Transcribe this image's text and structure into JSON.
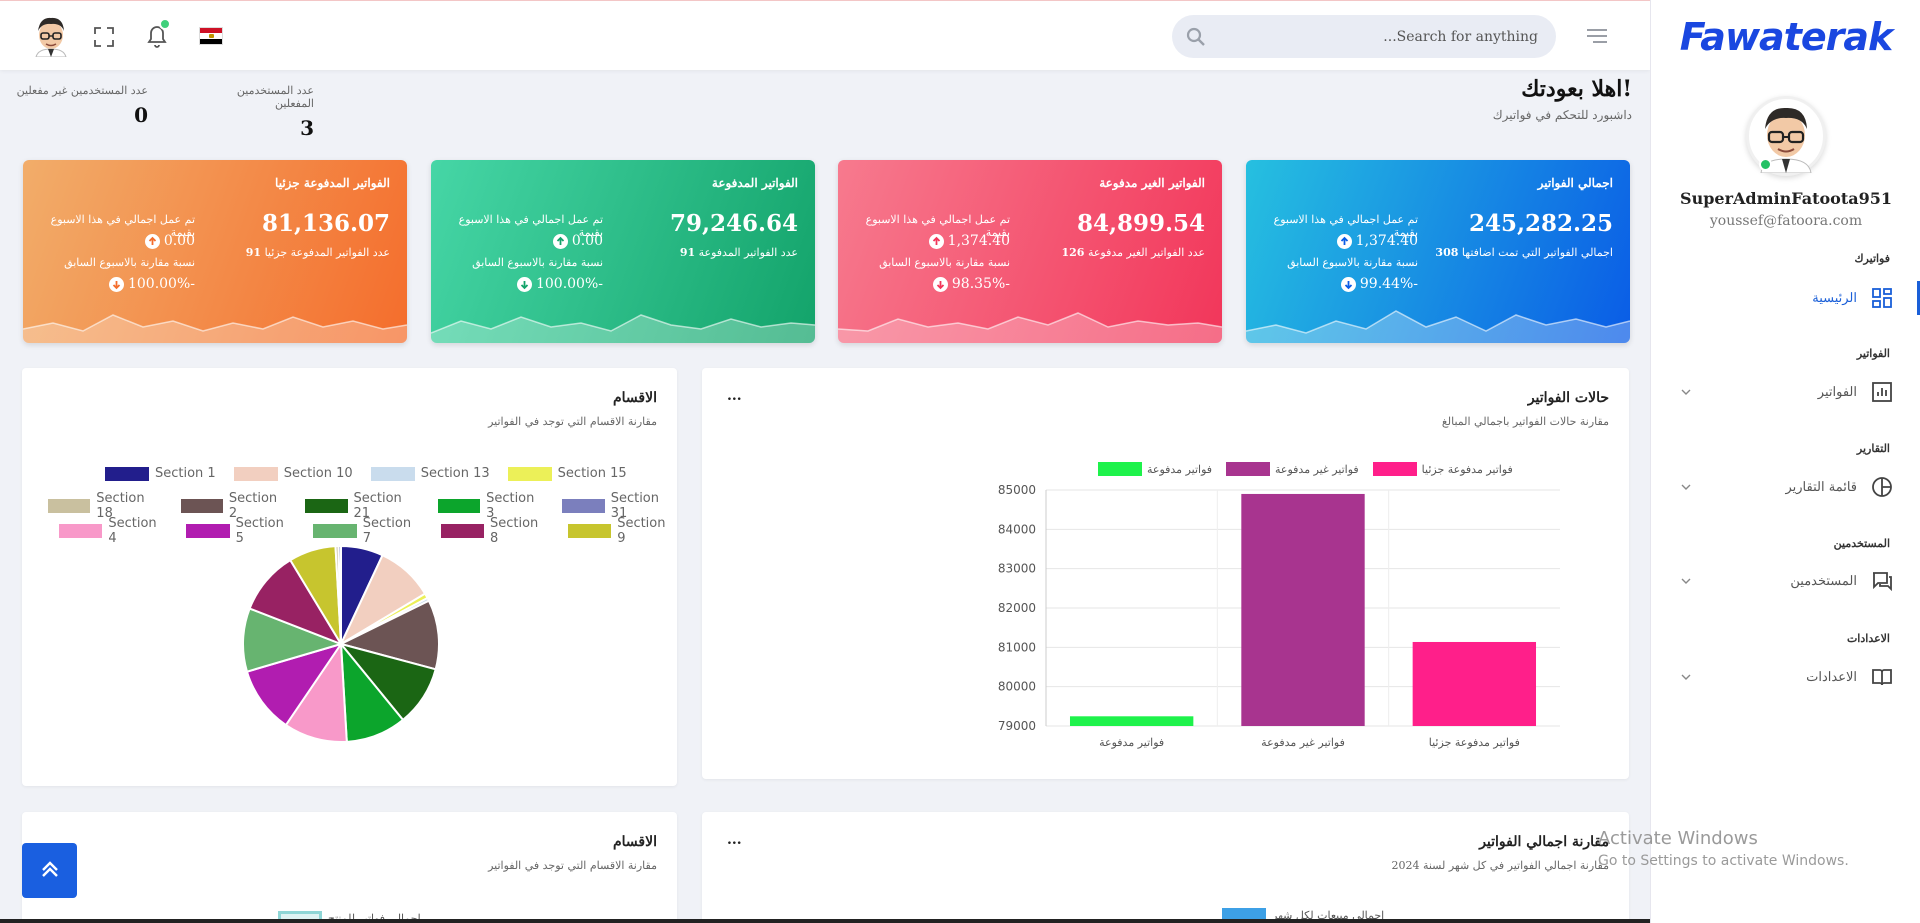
{
  "topbar": {
    "search_placeholder": "...Search for anything",
    "icons": [
      "user-avatar",
      "fullscreen-icon",
      "bell-icon",
      "egypt-flag-icon",
      "search-icon",
      "menu-icon"
    ]
  },
  "sidebar": {
    "logo": "Fawaterak",
    "user_name": "SuperAdminFatoota951",
    "user_email": "youssef@fatoora.com",
    "sections": [
      {
        "title": "فواتيرك",
        "item": "الرئيسية",
        "icon": "dashboard-icon"
      },
      {
        "title": "الفواتير",
        "item": "الفواتير",
        "icon": "bar-chart-icon"
      },
      {
        "title": "التقارير",
        "item": "قائمة التقارير",
        "icon": "pie-chart-icon"
      },
      {
        "title": "المستخدمين",
        "item": "المستخدمين",
        "icon": "chat-icon"
      },
      {
        "title": "الاعدادات",
        "item": "الاعدادات",
        "icon": "book-icon"
      }
    ]
  },
  "welcome": {
    "title": "اهلا بعودتك!",
    "subtitle": "داشبورد للتحكم في فواتيرك"
  },
  "user_stats": {
    "active_label": "عدد المستخدمين المفعلين",
    "active_value": "3",
    "inactive_label": "عدد المستخدمين غير مفعلين",
    "inactive_value": "0"
  },
  "cards": [
    {
      "title": "اجمالي الفواتير",
      "amount": "245,282.25",
      "sub_text": "اجمالي الفواتير التي تمت اضافتها",
      "sub_count": "308",
      "week_label": "تم عمل اجمالي في هذا الاسبوع بقيمة",
      "week_value": "1,374.40",
      "cmp_label": "نسبة مقارنة بالاسبوع السابق",
      "cmp_value": "99.44%-",
      "color_from": "#0a5ce6",
      "color_to": "#26c0e0"
    },
    {
      "title": "الفواتير الغير مدفوعة",
      "amount": "84,899.54",
      "sub_text": "عدد الفواتير الغير مدفوعة",
      "sub_count": "126",
      "week_label": "تم عمل اجمالي في هذا الاسبوع بقيمة",
      "week_value": "1,374.40",
      "cmp_label": "نسبة مقارنة بالاسبوع السابق",
      "cmp_value": "98.35%-",
      "color_from": "#f2365a",
      "color_to": "#f77a8e"
    },
    {
      "title": "الفواتير المدفوعة",
      "amount": "79,246.64",
      "sub_text": "عدد الفواتير المدفوعة",
      "sub_count": "91",
      "week_label": "تم عمل اجمالي في هذا الاسبوع بقيمة",
      "week_value": "0.00",
      "cmp_label": "نسبة مقارنة بالاسبوع السابق",
      "cmp_value": "100.00%-",
      "color_from": "#13a36a",
      "color_to": "#46d6a6"
    },
    {
      "title": "الفواتير المدفوعة جزئيا",
      "amount": "81,136.07",
      "sub_text": "عدد الفواتير المدفوعة جزئيا",
      "sub_count": "91",
      "week_label": "تم عمل اجمالي في هذا الاسبوع بقيمة",
      "week_value": "0.00",
      "cmp_label": "نسبة مقارنة بالاسبوع السابق",
      "cmp_value": "100.00%-",
      "color_from": "#f46d2c",
      "color_to": "#f2ad6a"
    }
  ],
  "status_panel": {
    "title": "حالات الفواتير",
    "subtitle": "مقارنة حالات الفواتير باجمالي المبالغ",
    "menu": "..."
  },
  "sections_panel": {
    "title": "الاقسام",
    "subtitle": "مقارنة الاقسام التي توجد في الفواتير"
  },
  "bottom_left_panel": {
    "title": "الاقسام",
    "subtitle": "مقارنة الاقسام التي توجد في الفواتير",
    "legend_peek": "اجمالي فواتير للمنتج"
  },
  "bottom_right_panel": {
    "title": "مقارنة اجمالي الفواتير",
    "subtitle": "مقارنة اجمالي الفواتير في كل شهر لسنة 2024",
    "menu": "...",
    "legend_peek": "اجمالي مبيعات لكل شهر"
  },
  "watermark": {
    "line1": "Activate Windows",
    "line2": "Go to Settings to activate Windows."
  },
  "chart_data": [
    {
      "type": "bar",
      "title": "حالات الفواتير",
      "categories": [
        "فواتير مدفوعة",
        "فواتير غير مدفوعة",
        "فواتير مدفوعة جزئيا"
      ],
      "values": [
        79246.64,
        84899.54,
        81136.07
      ],
      "colors": [
        "#1ef24b",
        "#a8348f",
        "#ff1f8a"
      ],
      "legend": [
        "فواتير مدفوعة",
        "فواتير غير مدفوعة",
        "فواتير مدفوعة جزئيا"
      ],
      "ylim": [
        79000,
        85000
      ],
      "yticks": [
        79000,
        80000,
        81000,
        82000,
        83000,
        84000,
        85000
      ],
      "grid": true,
      "legend_position": "top"
    },
    {
      "type": "pie",
      "title": "الاقسام",
      "labels": [
        "Section 1",
        "Section 10",
        "Section 13",
        "Section 15",
        "Section 18",
        "Section 2",
        "Section 21",
        "Section 3",
        "Section 31",
        "Section 4",
        "Section 5",
        "Section 7",
        "Section 8",
        "Section 9"
      ],
      "colors": [
        "#221e8c",
        "#f2cfc0",
        "#c9dced",
        "#ecf058",
        "#c9c09f",
        "#6c5454",
        "#1b6614",
        "#0ca52c",
        "#7b7fbd",
        "#f899c9",
        "#b11db0",
        "#67b470",
        "#982263",
        "#c7c52e"
      ],
      "values": [
        7,
        9.5,
        0.5,
        0.8,
        0.5,
        11.5,
        10,
        10,
        0.4,
        10.5,
        11,
        10.5,
        10.5,
        7.8
      ],
      "legend_position": "top"
    }
  ]
}
